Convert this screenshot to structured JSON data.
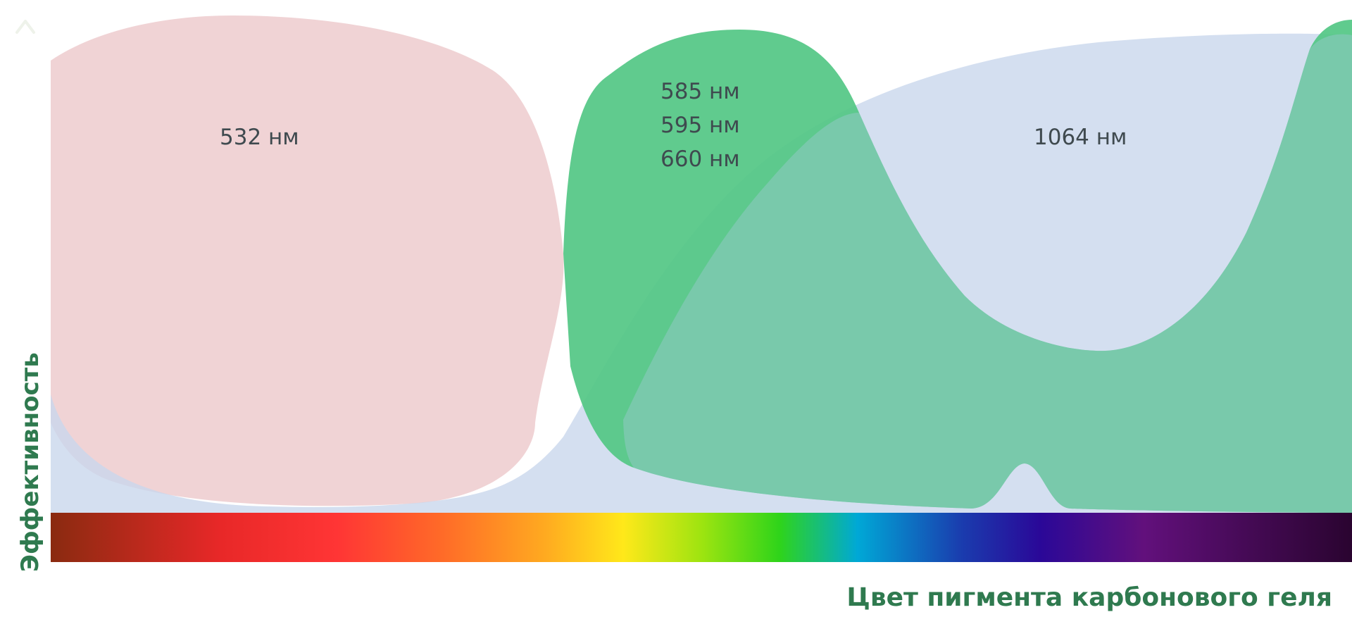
{
  "chart_data": {
    "type": "area",
    "title": "",
    "xlabel": "Цвет пигмента карбонового геля",
    "ylabel": "Эффективность",
    "x_axis": "color spectrum (dark red → red → orange → yellow → green → blue → violet → black)",
    "grid": false,
    "legend": "none",
    "series": [
      {
        "name": "532 нм",
        "labels": [
          "532 нм"
        ],
        "color": "#f0d2d4",
        "x": [
          0,
          0.1,
          0.2,
          0.3,
          0.35,
          0.38,
          0.4,
          0.45,
          0.5,
          0.6,
          0.7,
          0.8,
          0.9,
          1.0
        ],
        "values": [
          0.85,
          0.98,
          1.0,
          0.95,
          0.82,
          0.55,
          0.05,
          0.0,
          0.0,
          0.0,
          0.0,
          0.0,
          0.0,
          0.0
        ]
      },
      {
        "name": "585 / 595 / 660 нм",
        "labels": [
          "585 нм",
          "595 нм",
          "660 нм"
        ],
        "color": "#58c98a",
        "x": [
          0,
          0.3,
          0.4,
          0.42,
          0.5,
          0.6,
          0.7,
          0.75,
          0.8,
          0.9,
          0.95,
          1.0
        ],
        "values": [
          0.0,
          0.0,
          0.35,
          0.85,
          0.95,
          0.5,
          0.05,
          0.0,
          0.0,
          0.05,
          0.5,
          1.0
        ]
      },
      {
        "name": "1064 нм",
        "labels": [
          "1064 нм"
        ],
        "color": "#d3dfef",
        "x": [
          0,
          0.1,
          0.3,
          0.4,
          0.45,
          0.5,
          0.6,
          0.7,
          0.8,
          0.9,
          1.0
        ],
        "values": [
          0.2,
          0.0,
          0.0,
          0.05,
          0.2,
          0.5,
          0.78,
          0.9,
          0.94,
          0.95,
          0.95
        ]
      }
    ],
    "spectrum_colors": [
      "#8a2a10",
      "#ff3030",
      "#ff7a20",
      "#ffe81a",
      "#6fe010",
      "#00a8d6",
      "#2030a0",
      "#5a107a",
      "#2a0430"
    ]
  }
}
